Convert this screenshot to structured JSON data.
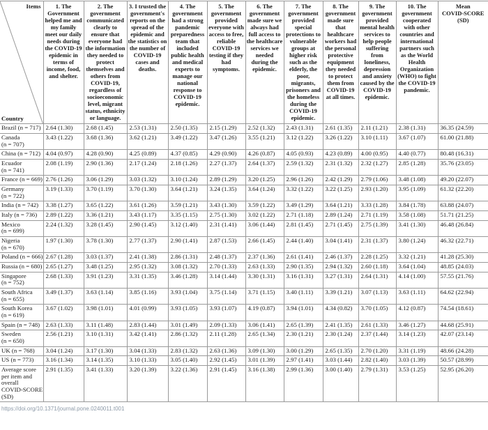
{
  "colors": {
    "border": "#999999",
    "text": "#1a1a1a",
    "doi_link": "#8d9aa8"
  },
  "table": {
    "corner": {
      "items_label": "Items",
      "country_label": "Country"
    },
    "column_headers": [
      "1. The Government helped me and my family meet our daily needs during the COVID-19 epidemic in terms of income, food, and shelter.",
      "2. The government communicated clearly to ensure that everyone had the information they needed to protect themselves and others from COVID-19, regardless of socioeconomic level, migrant status, ethnicity or language.",
      "3. I trusted the government's reports on the spread of the epidemic and the statistics on the number of COVID-19 cases and deaths.",
      "4. The government had a strong pandemic preparedness team that included public health and medical experts to manage our national response to COVID-19 epidemic.",
      "5. The government provided everyone with access to free, reliable COVID-19 testing if they had symptoms.",
      "6. The government made sure we always had full access to the healthcare services we needed during the epidemic.",
      "7. The government provided special protections to vulnerable groups at higher risk such as the elderly, the poor, migrants, prisoners and the homeless during the COVID-19 epidemic.",
      "8. The government made sure that healthcare workers had the personal protective equipment they needed to protect them from COVID-19 at all times.",
      "9. The government provided mental health services to help people suffering from loneliness, depression and anxiety caused by the COVID-19 epidemic.",
      "10. The government cooperated with other countries and international partners such as the World Health Organization (WHO) to fight the COVID-19 pandemic.",
      "Mean\nCOVID-SCORE\n(SD)"
    ],
    "rows": [
      {
        "country": "Brazil (n = 717)",
        "values": [
          "2.64 (1.30)",
          "2.68 (1.45)",
          "2.53 (1.31)",
          "2.50 (1.35)",
          "2.15 (1.29)",
          "2.52 (1.32)",
          "2.43 (1.31)",
          "2.61 (1.35)",
          "2.11 (1.21)",
          "2.38 (1.31)",
          "36.35 (24.59)"
        ]
      },
      {
        "country": "Canada\n(n = 707)",
        "values": [
          "3.43 (1.22)",
          "3.68 (1.36)",
          "3.62 (1.21)",
          "3.49 (1.22)",
          "3.47 (1.26)",
          "3.55 (1.21)",
          "3.12 (1.22)",
          "3.26 (1.22)",
          "3.10 (1.11)",
          "3.67 (1.07)",
          "61.00 (21.88)"
        ]
      },
      {
        "country": "China (n = 712)",
        "values": [
          "4.04 (0.97)",
          "4.28 (0.90)",
          "4.25 (0.89)",
          "4.37 (0.85)",
          "4.29 (0.90)",
          "4.26 (0.87)",
          "4.05 (0.93)",
          "4.23 (0.89)",
          "4.00 (0.95)",
          "4.40 (0.77)",
          "80.48 (16.31)"
        ]
      },
      {
        "country": "Ecuador\n(n = 741)",
        "values": [
          "2.08 (1.19)",
          "2.90 (1.36)",
          "2.17 (1.24)",
          "2.18 (1.26)",
          "2.27 (1.37)",
          "2.64 (1.37)",
          "2.59 (1.32)",
          "2.31 (1.32)",
          "2.32 (1.27)",
          "2.85 (1.28)",
          "35.76 (23.05)"
        ]
      },
      {
        "country": "France (n = 669)",
        "values": [
          "2.76 (1.26)",
          "3.06 (1.29)",
          "3.03 (1.32)",
          "3.10 (1.24)",
          "2.89 (1.29)",
          "3.20 (1.25)",
          "2.96 (1.26)",
          "2.42 (1.29)",
          "2.79 (1.06)",
          "3.48 (1.08)",
          "49.20 (22.07)"
        ]
      },
      {
        "country": "Germany\n(n = 722)",
        "values": [
          "3.19 (1.33)",
          "3.70 (1.19)",
          "3.70 (1.30)",
          "3.64 (1.21)",
          "3.24 (1.35)",
          "3.64 (1.24)",
          "3.32 (1.22)",
          "3.22 (1.25)",
          "2.93 (1.20)",
          "3.95 (1.09)",
          "61.32 (22.20)"
        ]
      },
      {
        "country": "India (n = 742)",
        "values": [
          "3.38 (1.27)",
          "3.65 (1.22)",
          "3.61 (1.26)",
          "3.59 (1.21)",
          "3.43 (1.30)",
          "3.59 (1.22)",
          "3.49 (1.29)",
          "3.64 (1.21)",
          "3.33 (1.28)",
          "3.84 (1.78)",
          "63.88 (24.07)"
        ]
      },
      {
        "country": "Italy (n = 736)",
        "values": [
          "2.89 (1.22)",
          "3.36 (1.21)",
          "3.43 (1.17)",
          "3.35 (1.15)",
          "2.75 (1.30)",
          "3.02 (1.22)",
          "2.71 (1.18)",
          "2.89 (1.24)",
          "2.71 (1.19)",
          "3.58 (1.08)",
          "51.71 (21.25)"
        ]
      },
      {
        "country": "Mexico\n(n = 699)",
        "values": [
          "2.24 (1.32)",
          "3.28 (1.45)",
          "2.90 (1.45)",
          "3.12 (1.40)",
          "2.31 (1.41)",
          "3.06 (1.44)",
          "2.81 (1.45)",
          "2.71 (1.45)",
          "2.75 (1.39)",
          "3.41 (1.30)",
          "46.48 (26.84)"
        ]
      },
      {
        "country": "Nigeria\n(n = 670)",
        "values": [
          "1.97 (1.30)",
          "3.78 (1.30)",
          "2.77 (1.37)",
          "2.90 (1.41)",
          "2.87 (1.53)",
          "2.66 (1.45)",
          "2.44 (1.40)",
          "3.04 (1.41)",
          "2.31 (1.37)",
          "3.80 (1.24)",
          "46.32 (22.71)"
        ]
      },
      {
        "country": "Poland (n = 666)",
        "values": [
          "2.67 (1.28)",
          "3.03 (1.37)",
          "2.41 (1.38)",
          "2.86 (1.31)",
          "2.48 (1.37)",
          "2.37 (1.36)",
          "2.61 (1.41)",
          "2.46 (1.37)",
          "2.28 (1.25)",
          "3.32 (1.21)",
          "41.28 (25.30)"
        ]
      },
      {
        "country": "Russia (n = 680)",
        "values": [
          "2.65 (1.27)",
          "3.48 (1.25)",
          "2.95 (1.32)",
          "3.08 (1.32)",
          "2.70 (1.33)",
          "2.63 (1.33)",
          "2.90 (1.35)",
          "2.94 (1.32)",
          "2.60 (1.18)",
          "3.64 (1.04)",
          "48.85 (24.03)"
        ]
      },
      {
        "country": "Singapore\n(n = 752)",
        "values": [
          "2.68 (1.33)",
          "3.91 (1.23)",
          "3.31 (1.35)",
          "3.46 (1.28)",
          "3.14 (1.44)",
          "3.30 (1.31)",
          "3.16 (1.31)",
          "3.27 (1.31)",
          "2.64 (1.31)",
          "4.14 (1.00)",
          "57.55 (21.76)"
        ]
      },
      {
        "country": "South Africa\n(n = 655)",
        "values": [
          "3.49 (1.37)",
          "3.63 (1.14)",
          "3.85 (1.16)",
          "3.93 (1.04)",
          "3.75 (1.14)",
          "3.71 (1.15)",
          "3.40 (1.11)",
          "3.39 (1.21)",
          "3.07 (1.13)",
          "3.63 (1.11)",
          "64.62 (22.94)"
        ]
      },
      {
        "country": "South Korea\n(n = 619)",
        "values": [
          "3.67 (1.02)",
          "3.98 (1.01)",
          "4.01 (0.99)",
          "3.93 (1.05)",
          "3.93 (1.07)",
          "4.19 (0.87)",
          "3.94 (1.01)",
          "4.34 (0.82)",
          "3.70 (1.05)",
          "4.12 (0.87)",
          "74.54 (18.61)"
        ]
      },
      {
        "country": "Spain (n = 748)",
        "values": [
          "2.63 (1.33)",
          "3.11 (1.48)",
          "2.83 (1.44)",
          "3.01 (1.49)",
          "2.09 (1.33)",
          "3.06 (1.41)",
          "2.65 (1.39)",
          "2.41 (1.35)",
          "2.61 (1.33)",
          "3.46 (1.27)",
          "44.68 (25.91)"
        ]
      },
      {
        "country": "Sweden\n(n = 650)",
        "values": [
          "2.56 (1.21)",
          "3.10 (1.31)",
          "3.42 (1.41)",
          "2.86 (1.32)",
          "2.11 (1.28)",
          "2.65 (1.34)",
          "2.30 (1.21)",
          "2.30 (1.24)",
          "2.37 (1.44)",
          "3.14 (1.23)",
          "42.07 (23.14)"
        ]
      },
      {
        "country": "UK (n = 768)",
        "values": [
          "3.04 (1.24)",
          "3.17 (1.30)",
          "3.04 (1.33)",
          "2.83 (1.32)",
          "2.63 (1.36)",
          "3.09 (1.30)",
          "3.00 (1.29)",
          "2.65 (1.35)",
          "2.70 (1.20)",
          "3.31 (1.19)",
          "48.66 (24.28)"
        ]
      },
      {
        "country": "US (n = 773)",
        "values": [
          "3.16 (1.34)",
          "3.14 (1.35)",
          "3.10 (1.33)",
          "3.05 (1.40)",
          "2.92 (1.45)",
          "3.01 (1.39)",
          "2.97 (1.41)",
          "3.03 (1.44)",
          "2.82 (1.40)",
          "3.03 (1.39)",
          "50.57 (28.99)"
        ]
      },
      {
        "country": "Average score\nper item and\noverall\nCOVID-SCORE\n(SD)",
        "values": [
          "2.91 (1.35)",
          "3.41 (1.33)",
          "3.20 (1.39)",
          "3.22 (1.36)",
          "2.91 (1.45)",
          "3.16 (1.38)",
          "2.99 (1.36)",
          "3.00 (1.40)",
          "2.79 (1.31)",
          "3.53 (1.25)",
          "52.95 (26.20)"
        ]
      }
    ]
  },
  "footer": {
    "doi_link": "https://doi.org/10.1371/journal.pone.0240011.t001"
  }
}
